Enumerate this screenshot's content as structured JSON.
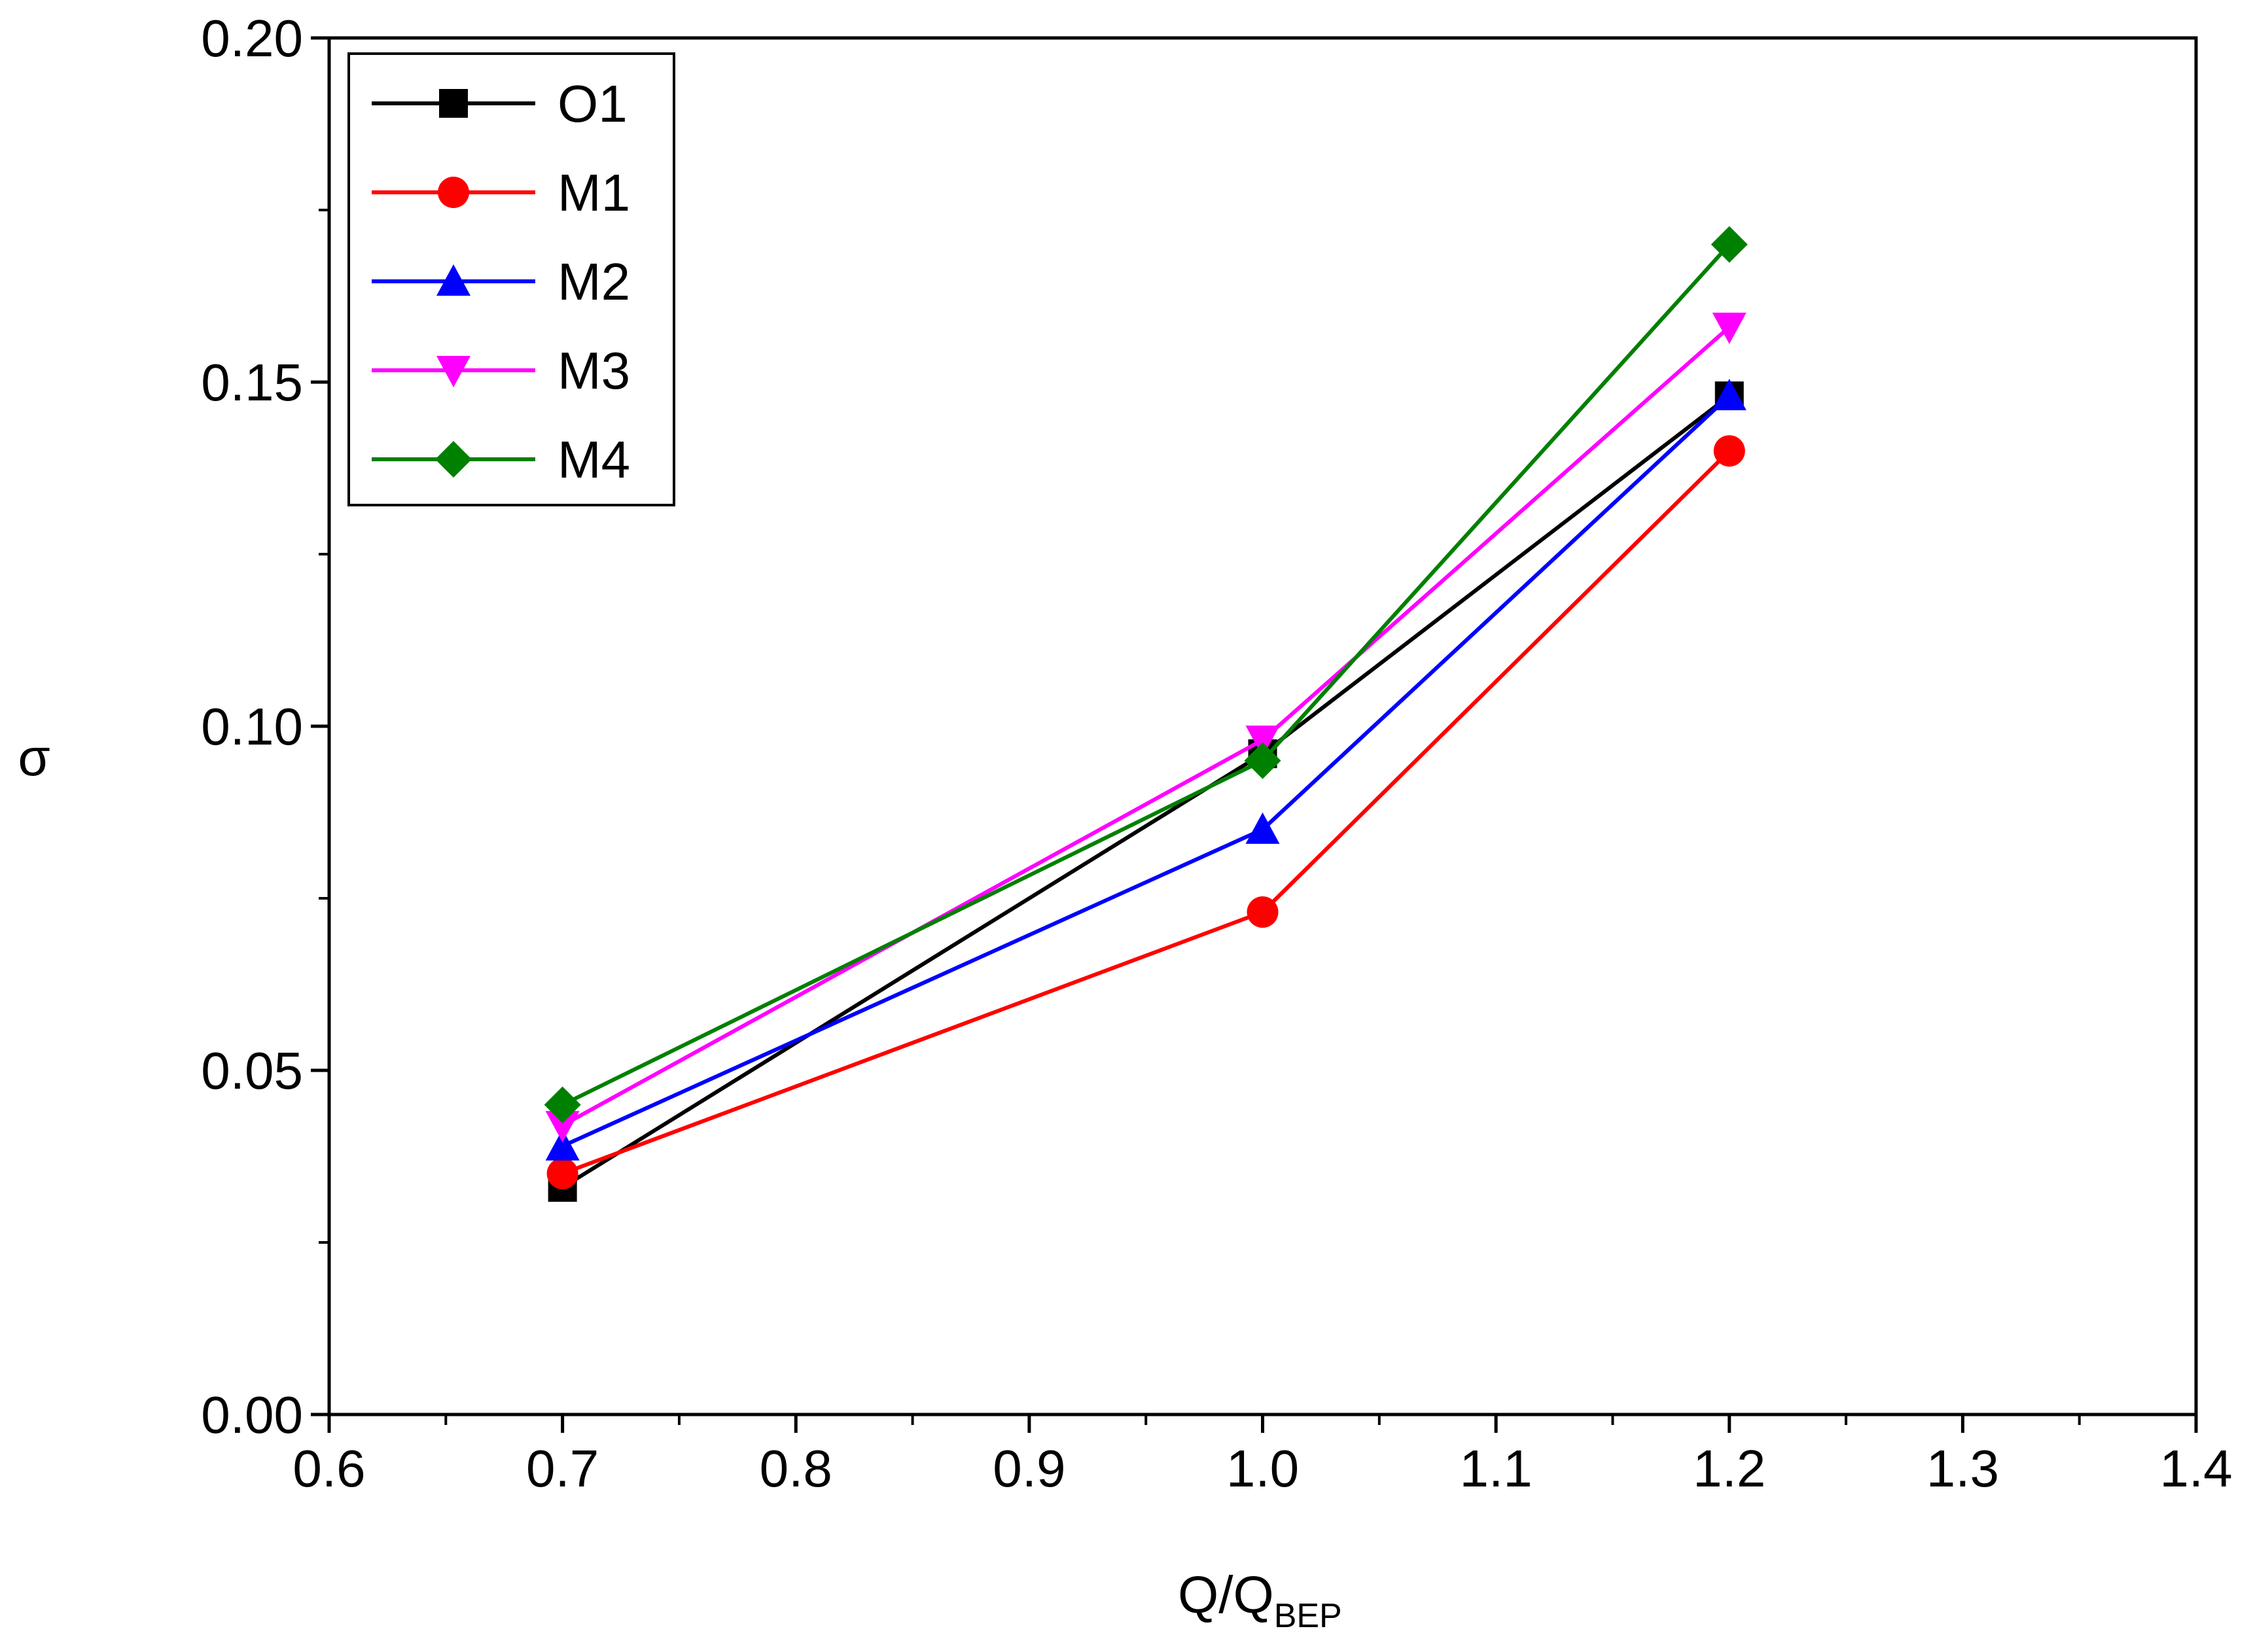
{
  "chart_data": {
    "type": "line",
    "title": "",
    "xlabel_main": "Q/Q",
    "xlabel_sub": "BEP",
    "ylabel": "σ",
    "xlim": [
      0.6,
      1.4
    ],
    "ylim": [
      0.0,
      0.2
    ],
    "x_ticks": [
      "0.6",
      "0.7",
      "0.8",
      "0.9",
      "1.0",
      "1.1",
      "1.2",
      "1.3",
      "1.4"
    ],
    "y_ticks": [
      "0.00",
      "0.05",
      "0.10",
      "0.15",
      "0.20"
    ],
    "grid": false,
    "legend_position": "top-left",
    "x": [
      0.7,
      1.0,
      1.2
    ],
    "series": [
      {
        "name": "O1",
        "color": "#000000",
        "marker": "square",
        "values": [
          0.033,
          0.096,
          0.148
        ]
      },
      {
        "name": "M1",
        "color": "#ff0000",
        "marker": "circle",
        "values": [
          0.035,
          0.073,
          0.14
        ]
      },
      {
        "name": "M2",
        "color": "#0000ff",
        "marker": "triangle-up",
        "values": [
          0.039,
          0.085,
          0.148
        ]
      },
      {
        "name": "M3",
        "color": "#ff00ff",
        "marker": "triangle-down",
        "values": [
          0.042,
          0.098,
          0.158
        ]
      },
      {
        "name": "M4",
        "color": "#008000",
        "marker": "diamond",
        "values": [
          0.045,
          0.095,
          0.17
        ]
      }
    ]
  }
}
